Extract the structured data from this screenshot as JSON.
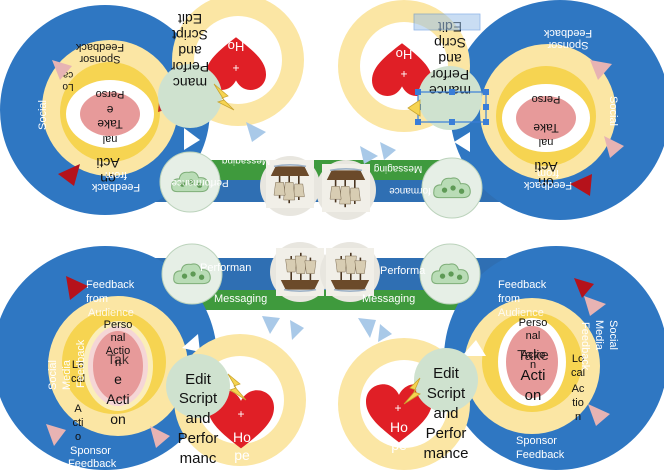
{
  "colors": {
    "outer_ring": "#2f77c2",
    "yellow_ring": "#fbe6a4",
    "yellow_core": "#f6d451",
    "pink_core": "#e79a9a",
    "green_cloud": "#cfe2cf",
    "green_band": "#3f9a3d",
    "blue_band": "#2f6fb3",
    "heart": "#e01f26",
    "red_arrow": "#b5121b",
    "light_arrow": "#a9c9e8",
    "selection": "#3a7ed8"
  },
  "top": {
    "left": {
      "feedback_title": "Feedback",
      "sponsor": "Sponsor",
      "feedback": "Feedback",
      "action_line1": "Acti",
      "action_line2": "on",
      "take": "Take",
      "personal": "Perso",
      "nal": "nal",
      "social": "Social",
      "local_line1": "Lo",
      "local_line2": "ca",
      "from": "from",
      "edit": "Edit",
      "script": "Script",
      "and": "and",
      "perfor": "Perfor",
      "manc": "manc",
      "hope_ho": "Ho",
      "hope_pe": "pe",
      "messaging": "Messaging",
      "performance": "Performance"
    },
    "right": {
      "mance": "mance",
      "perfor": "Perfor",
      "and": "and",
      "script": "Scrip",
      "edit": "Edit",
      "sponsor": "Sponsor",
      "feedback": "Feedback",
      "take": "Take",
      "action": "Acti",
      "on": "on",
      "personal": "Perso",
      "nal": "nal",
      "social": "Social",
      "from": "from",
      "hope_ho": "Ho",
      "hope_pe": "pe",
      "messaging": "Messaging",
      "performance": "formance"
    }
  },
  "bottom": {
    "left": {
      "feedback_from": "Feedback",
      "from": "from",
      "audience": "Audience",
      "personal": "Perso",
      "nal": "nal",
      "action": "Actio",
      "n": "n",
      "take": "Tak",
      "e": "e",
      "acti": "Acti",
      "on": "on",
      "lo": "Lo",
      "cal": "cal",
      "a": "A",
      "ctio": "cti",
      "o": "o",
      "social": "Social",
      "media": "Media",
      "feedback_v": "Feedback",
      "sponsor": "Sponsor",
      "sponsor_feedback": "Feedback",
      "edit": "Edit",
      "script": "Script",
      "and": "and",
      "perfor": "Perfor",
      "manc": "manc",
      "hope_ho": "Ho",
      "hope_pe": "pe",
      "performance": "Performan",
      "messaging": "Messaging"
    },
    "right": {
      "feedback_from": "Feedback",
      "from": "from",
      "audience": "Audience",
      "personal": "Perso",
      "nal": "nal",
      "action": "Actio",
      "n": "n",
      "take": "Take",
      "acti": "Acti",
      "on": "on",
      "lo": "Lo",
      "cal": "cal",
      "ac": "Ac",
      "tio": "tio",
      "n2": "n",
      "social": "Social",
      "media": "Media",
      "feedback_v": "Feedback",
      "sponsor": "Sponsor",
      "sponsor_feedback": "Feedback",
      "edit": "Edit",
      "script": "Script",
      "and": "and",
      "perfor": "Perfor",
      "mance": "mance",
      "hope_ho": "Ho",
      "hope_pe": "pe",
      "performance": "Performa",
      "messaging": "Messaging"
    }
  }
}
